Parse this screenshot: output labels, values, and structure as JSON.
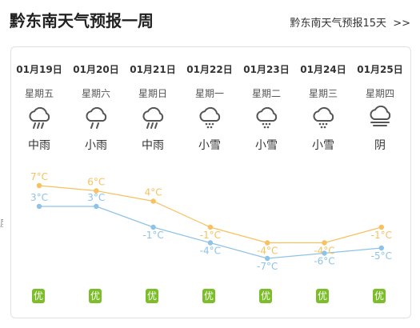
{
  "header": {
    "title": "黔东南天气预报一周",
    "more_label": "黔东南天气预报15天",
    "more_arrow": ">>"
  },
  "left_cut_text": "度",
  "days": [
    {
      "date": "01月19日",
      "weekday": "星期五",
      "icon": "moderate-rain-icon",
      "desc": "中雨",
      "aqi": "优"
    },
    {
      "date": "01月20日",
      "weekday": "星期六",
      "icon": "light-rain-icon",
      "desc": "小雨",
      "aqi": "优"
    },
    {
      "date": "01月21日",
      "weekday": "星期日",
      "icon": "moderate-rain-icon",
      "desc": "中雨",
      "aqi": "优"
    },
    {
      "date": "01月22日",
      "weekday": "星期一",
      "icon": "light-snow-icon",
      "desc": "小雪",
      "aqi": "优"
    },
    {
      "date": "01月23日",
      "weekday": "星期二",
      "icon": "light-snow-icon",
      "desc": "小雪",
      "aqi": "优"
    },
    {
      "date": "01月24日",
      "weekday": "星期三",
      "icon": "light-snow-icon",
      "desc": "小雪",
      "aqi": "优"
    },
    {
      "date": "01月25日",
      "weekday": "星期四",
      "icon": "overcast-icon",
      "desc": "阴",
      "aqi": "优"
    }
  ],
  "colors": {
    "high_line": "#f7c15f",
    "low_line": "#8ec3e8",
    "aqi_good": "#7cbe2a"
  },
  "chart_data": {
    "type": "line",
    "unit": "°C",
    "categories": [
      "01月19日",
      "01月20日",
      "01月21日",
      "01月22日",
      "01月23日",
      "01月24日",
      "01月25日"
    ],
    "series": [
      {
        "values": [
          7,
          6,
          4,
          -1,
          -4,
          -4,
          -1
        ]
      },
      {
        "values": [
          3,
          3,
          -1,
          -4,
          -7,
          -6,
          -5
        ]
      }
    ],
    "high_labels": [
      "7°C",
      "6°C",
      "4°C",
      "-1°C",
      "-4°C",
      "-4°C",
      "-1°C"
    ],
    "low_labels": [
      "3°C",
      "3°C",
      "-1°C",
      "-4°C",
      "-7°C",
      "-6°C",
      "-5°C"
    ]
  }
}
